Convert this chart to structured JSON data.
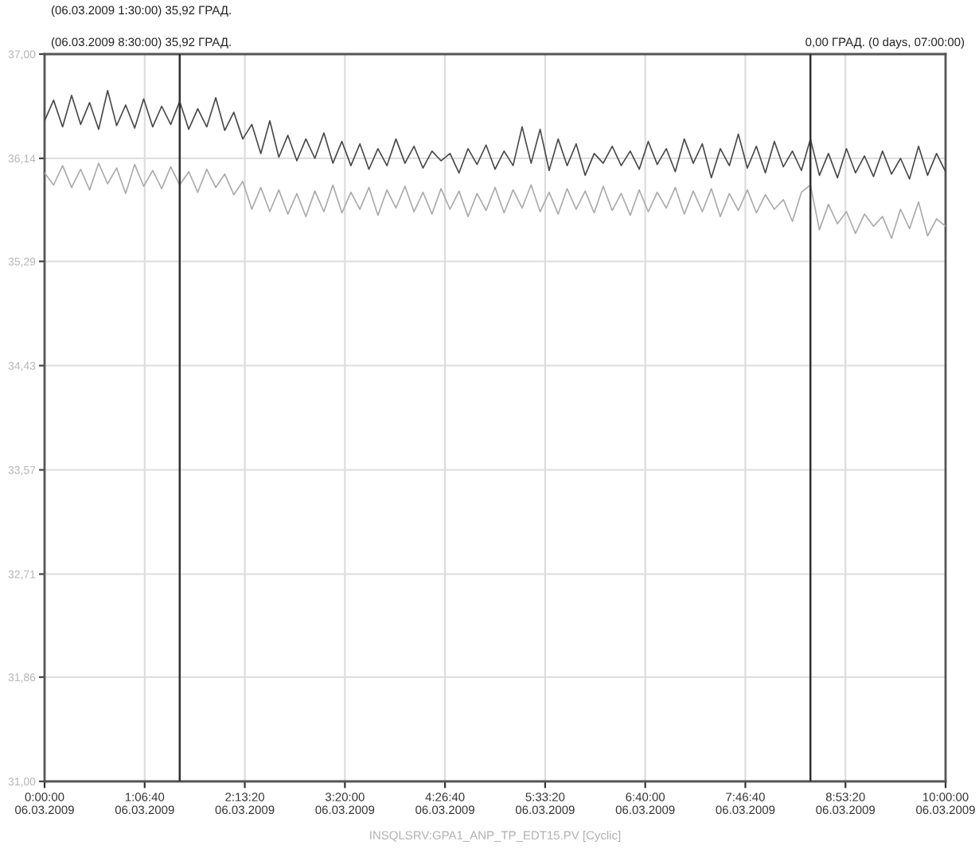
{
  "chart_data": {
    "type": "line",
    "annotations": [
      "(06.03.2009 1:30:00) 35,92 ГРАД.",
      "(06.03.2009 8:30:00) 35,92 ГРАД.",
      "0,00 ГРАД. (0 days, 07:00:00)"
    ],
    "xlabel": "INSQLSRV:GPA1_ANP_TP_EDT15.PV [Cyclic]",
    "x": [
      "2009-03-06T00:00",
      "2009-03-06T00:06",
      "2009-03-06T00:12",
      "2009-03-06T00:18",
      "2009-03-06T00:24",
      "2009-03-06T00:30",
      "2009-03-06T00:36",
      "2009-03-06T00:42",
      "2009-03-06T00:48",
      "2009-03-06T00:54",
      "2009-03-06T01:00",
      "2009-03-06T01:06",
      "2009-03-06T01:12",
      "2009-03-06T01:18",
      "2009-03-06T01:24",
      "2009-03-06T01:30",
      "2009-03-06T01:36",
      "2009-03-06T01:42",
      "2009-03-06T01:48",
      "2009-03-06T01:54",
      "2009-03-06T02:00",
      "2009-03-06T02:06",
      "2009-03-06T02:12",
      "2009-03-06T02:18",
      "2009-03-06T02:24",
      "2009-03-06T02:30",
      "2009-03-06T02:36",
      "2009-03-06T02:42",
      "2009-03-06T02:48",
      "2009-03-06T02:54",
      "2009-03-06T03:00",
      "2009-03-06T03:06",
      "2009-03-06T03:12",
      "2009-03-06T03:18",
      "2009-03-06T03:24",
      "2009-03-06T03:30",
      "2009-03-06T03:36",
      "2009-03-06T03:42",
      "2009-03-06T03:48",
      "2009-03-06T03:54",
      "2009-03-06T04:00",
      "2009-03-06T04:06",
      "2009-03-06T04:12",
      "2009-03-06T04:18",
      "2009-03-06T04:24",
      "2009-03-06T04:30",
      "2009-03-06T04:36",
      "2009-03-06T04:42",
      "2009-03-06T04:48",
      "2009-03-06T04:54",
      "2009-03-06T05:00",
      "2009-03-06T05:06",
      "2009-03-06T05:12",
      "2009-03-06T05:18",
      "2009-03-06T05:24",
      "2009-03-06T05:30",
      "2009-03-06T05:36",
      "2009-03-06T05:42",
      "2009-03-06T05:48",
      "2009-03-06T05:54",
      "2009-03-06T06:00",
      "2009-03-06T06:06",
      "2009-03-06T06:12",
      "2009-03-06T06:18",
      "2009-03-06T06:24",
      "2009-03-06T06:30",
      "2009-03-06T06:36",
      "2009-03-06T06:42",
      "2009-03-06T06:48",
      "2009-03-06T06:54",
      "2009-03-06T07:00",
      "2009-03-06T07:06",
      "2009-03-06T07:12",
      "2009-03-06T07:18",
      "2009-03-06T07:24",
      "2009-03-06T07:30",
      "2009-03-06T07:36",
      "2009-03-06T07:42",
      "2009-03-06T07:48",
      "2009-03-06T07:54",
      "2009-03-06T08:00",
      "2009-03-06T08:06",
      "2009-03-06T08:12",
      "2009-03-06T08:18",
      "2009-03-06T08:24",
      "2009-03-06T08:30",
      "2009-03-06T08:36",
      "2009-03-06T08:42",
      "2009-03-06T08:48",
      "2009-03-06T08:54",
      "2009-03-06T09:00",
      "2009-03-06T09:06",
      "2009-03-06T09:12",
      "2009-03-06T09:18",
      "2009-03-06T09:24",
      "2009-03-06T09:30",
      "2009-03-06T09:36",
      "2009-03-06T09:42",
      "2009-03-06T09:48",
      "2009-03-06T09:54",
      "2009-03-06T10:00"
    ],
    "series": [
      {
        "color": "#4a4a4a",
        "values": [
          36.45,
          36.62,
          36.4,
          36.66,
          36.42,
          36.6,
          36.38,
          36.7,
          36.41,
          36.58,
          36.39,
          36.63,
          36.4,
          36.57,
          36.42,
          36.61,
          36.38,
          36.55,
          36.4,
          36.64,
          36.37,
          36.52,
          36.3,
          36.42,
          36.18,
          36.45,
          36.15,
          36.33,
          36.12,
          36.3,
          36.14,
          36.35,
          36.1,
          36.28,
          36.08,
          36.26,
          36.05,
          36.22,
          36.08,
          36.3,
          36.1,
          36.24,
          36.06,
          36.2,
          36.12,
          36.18,
          36.02,
          36.22,
          36.09,
          36.25,
          36.05,
          36.2,
          36.08,
          36.4,
          36.1,
          36.38,
          36.04,
          36.3,
          36.08,
          36.26,
          36.0,
          36.18,
          36.1,
          36.24,
          36.08,
          36.2,
          36.05,
          36.28,
          36.09,
          36.22,
          36.03,
          36.3,
          36.1,
          36.26,
          35.98,
          36.22,
          36.08,
          36.34,
          36.06,
          36.24,
          36.02,
          36.28,
          36.07,
          36.2,
          36.04,
          36.3,
          36.0,
          36.18,
          35.98,
          36.22,
          36.02,
          36.16,
          35.99,
          36.2,
          36.01,
          36.14,
          35.97,
          36.24,
          36.0,
          36.18,
          36.03
        ]
      },
      {
        "color": "#ababab",
        "values": [
          36.02,
          35.92,
          36.08,
          35.9,
          36.05,
          35.88,
          36.1,
          35.93,
          36.06,
          35.85,
          36.09,
          35.91,
          36.04,
          35.89,
          36.07,
          35.92,
          36.03,
          35.86,
          36.05,
          35.9,
          36.01,
          35.84,
          35.95,
          35.72,
          35.9,
          35.7,
          35.88,
          35.68,
          35.85,
          35.66,
          35.87,
          35.7,
          35.92,
          35.69,
          35.86,
          35.72,
          35.9,
          35.67,
          35.88,
          35.73,
          35.91,
          35.7,
          35.86,
          35.68,
          35.89,
          35.72,
          35.87,
          35.66,
          35.85,
          35.71,
          35.9,
          35.69,
          35.88,
          35.73,
          35.92,
          35.7,
          35.86,
          35.68,
          35.89,
          35.72,
          35.87,
          35.69,
          35.91,
          35.71,
          35.85,
          35.67,
          35.88,
          35.7,
          35.86,
          35.73,
          35.9,
          35.68,
          35.87,
          35.7,
          35.89,
          35.66,
          35.85,
          35.71,
          35.88,
          35.69,
          35.84,
          35.72,
          35.8,
          35.62,
          35.86,
          35.92,
          35.55,
          35.76,
          35.6,
          35.7,
          35.52,
          35.68,
          35.58,
          35.66,
          35.48,
          35.72,
          35.56,
          35.78,
          35.5,
          35.64,
          35.58
        ]
      }
    ],
    "xlim": [
      "2009-03-06T00:00",
      "2009-03-06T10:00"
    ],
    "xticks": [
      {
        "value": "2009-03-06T00:00:00",
        "label": "0:00:00\n06.03.2009"
      },
      {
        "value": "2009-03-06T01:06:40",
        "label": "1:06:40\n06.03.2009"
      },
      {
        "value": "2009-03-06T02:13:20",
        "label": "2:13:20\n06.03.2009"
      },
      {
        "value": "2009-03-06T03:20:00",
        "label": "3:20:00\n06.03.2009"
      },
      {
        "value": "2009-03-06T04:26:40",
        "label": "4:26:40\n06.03.2009"
      },
      {
        "value": "2009-03-06T05:33:20",
        "label": "5:33:20\n06.03.2009"
      },
      {
        "value": "2009-03-06T06:40:00",
        "label": "6:40:00\n06.03.2009"
      },
      {
        "value": "2009-03-06T07:46:40",
        "label": "7:46:40\n06.03.2009"
      },
      {
        "value": "2009-03-06T08:53:20",
        "label": "8:53:20\n06.03.2009"
      },
      {
        "value": "2009-03-06T10:00:00",
        "label": "10:00:00\n06.03.2009"
      }
    ],
    "ylim": [
      31,
      37
    ],
    "yticks": [
      {
        "value": 31,
        "label": "31,00"
      },
      {
        "value": 31.86,
        "label": "31,86"
      },
      {
        "value": 32.71,
        "label": "32,71"
      },
      {
        "value": 33.57,
        "label": "33,57"
      },
      {
        "value": 34.43,
        "label": "34,43"
      },
      {
        "value": 35.29,
        "label": "35,29"
      },
      {
        "value": 36.14,
        "label": "36,14"
      },
      {
        "value": 37,
        "label": "37,00"
      }
    ],
    "ref_lines": [
      {
        "axis": "x",
        "value": "2009-03-06T01:30",
        "color": "#303030"
      },
      {
        "axis": "x",
        "value": "2009-03-06T08:30",
        "color": "#303030"
      }
    ],
    "grid": true
  }
}
